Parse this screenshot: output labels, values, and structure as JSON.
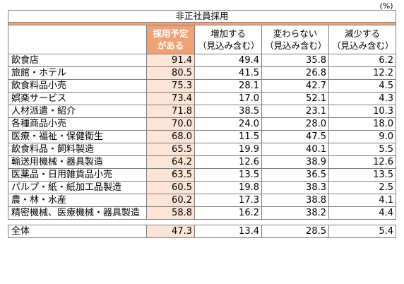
{
  "unit_label": "(%)",
  "table_title": "非正社員採用",
  "headers": {
    "yotei_line1": "採用予定",
    "yotei_line2": "がある",
    "zouka_line1": "増加する",
    "zouka_line2": "（見込み含む）",
    "kawaranai_line1": "変わらない",
    "kawaranai_line2": "（見込み含む）",
    "genshou_line1": "減少する",
    "genshou_line2": "（見込み含む）"
  },
  "rows": [
    {
      "category": "飲食店",
      "yotei": "91.4",
      "zouka": "49.4",
      "kawaranai": "35.8",
      "genshou": "6.2"
    },
    {
      "category": "旅館・ホテル",
      "yotei": "80.5",
      "zouka": "41.5",
      "kawaranai": "26.8",
      "genshou": "12.2"
    },
    {
      "category": "飲食料品小売",
      "yotei": "75.3",
      "zouka": "28.1",
      "kawaranai": "42.7",
      "genshou": "4.5"
    },
    {
      "category": "娯楽サービス",
      "yotei": "73.4",
      "zouka": "17.0",
      "kawaranai": "52.1",
      "genshou": "4.3"
    },
    {
      "category": "人材派遣・紹介",
      "yotei": "71.8",
      "zouka": "38.5",
      "kawaranai": "23.1",
      "genshou": "10.3"
    },
    {
      "category": "各種商品小売",
      "yotei": "70.0",
      "zouka": "24.0",
      "kawaranai": "28.0",
      "genshou": "18.0"
    },
    {
      "category": "医療・福祉・保健衛生",
      "yotei": "68.0",
      "zouka": "11.5",
      "kawaranai": "47.5",
      "genshou": "9.0"
    },
    {
      "category": "飲食料品・飼料製造",
      "yotei": "65.5",
      "zouka": "19.9",
      "kawaranai": "40.1",
      "genshou": "5.5"
    },
    {
      "category": "輸送用機械・器具製造",
      "yotei": "64.2",
      "zouka": "12.6",
      "kawaranai": "38.9",
      "genshou": "12.6"
    },
    {
      "category": "医薬品・日用雑貨品小売",
      "yotei": "63.5",
      "zouka": "13.5",
      "kawaranai": "36.5",
      "genshou": "13.5"
    },
    {
      "category": "パルプ・紙・紙加工品製造",
      "yotei": "60.5",
      "zouka": "19.8",
      "kawaranai": "38.3",
      "genshou": "2.5"
    },
    {
      "category": "農・林・水産",
      "yotei": "60.2",
      "zouka": "17.3",
      "kawaranai": "38.8",
      "genshou": "4.1"
    },
    {
      "category": "精密機械、医療機械・器具製造",
      "yotei": "58.8",
      "zouka": "16.2",
      "kawaranai": "38.2",
      "genshou": "4.4"
    }
  ],
  "total": {
    "category": "全体",
    "yotei": "47.3",
    "zouka": "13.4",
    "kawaranai": "28.5",
    "genshou": "5.4"
  },
  "colors": {
    "header_orange": "#f0a276",
    "yotei_fill": "#fce4d6"
  }
}
